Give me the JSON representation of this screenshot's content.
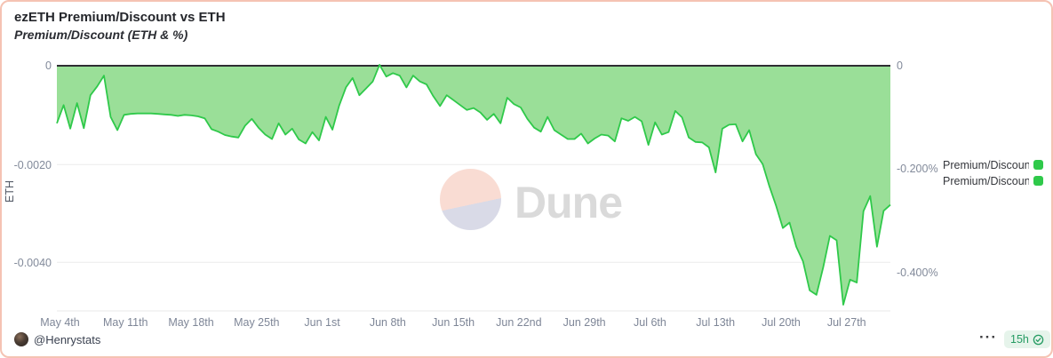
{
  "header": {
    "title": "ezETH Premium/Discount vs ETH",
    "subtitle": "Premium/Discount (ETH & %)"
  },
  "watermark": {
    "brand": "Dune"
  },
  "axes": {
    "left": {
      "label": "ETH",
      "ticks": [
        "0",
        "-0.0020",
        "-0.0040"
      ]
    },
    "right": {
      "ticks": [
        "0",
        "-0.200%",
        "-0.400%"
      ]
    }
  },
  "legend": [
    {
      "label": "Premium/Discount",
      "color": "#2fc94a"
    },
    {
      "label": "Premium/Discount",
      "color": "#2fc94a"
    }
  ],
  "footer": {
    "author": "@Henrystats",
    "menu_icon": "···",
    "updated_badge": "15h"
  },
  "colors": {
    "border": "#f5c3b3",
    "area_fill": "#9adf98",
    "line_stroke": "#2fc94a",
    "zero_line": "#2e2e32",
    "grid": "#ececec",
    "axis_text": "#828a9a",
    "badge_bg": "#e6f4eb",
    "badge_text": "#259b62",
    "watermark_pink": "#f9dcd3",
    "watermark_lavender": "#d9dae7"
  },
  "chart_data": {
    "type": "area",
    "title": "ezETH Premium/Discount vs ETH",
    "subtitle": "Premium/Discount (ETH & %)",
    "x_tick_labels": [
      "May 4th",
      "May 11th",
      "May 18th",
      "May 25th",
      "Jun 1st",
      "Jun 8th",
      "Jun 15th",
      "Jun 22nd",
      "Jun 29th",
      "Jul 6th",
      "Jul 13th",
      "Jul 20th",
      "Jul 27th"
    ],
    "x_range_days": [
      "May 4",
      "Aug 1"
    ],
    "ylabel_left": "ETH",
    "ylim_left": [
      -0.005,
      0.0002
    ],
    "ylim_right_percent": [
      -0.45,
      0.02
    ],
    "grid": "horizontal",
    "legend_position": "right",
    "right_axis_relation": "percent value = ETH value x 100",
    "series": [
      {
        "name": "Premium/Discount",
        "unit": "ETH",
        "values": [
          -0.00117,
          -0.0008,
          -0.00128,
          -0.00076,
          -0.00127,
          -0.0006,
          -0.00042,
          -0.0002,
          -0.00104,
          -0.00131,
          -0.001,
          -0.00098,
          -0.00097,
          -0.00097,
          -0.00097,
          -0.00098,
          -0.00099,
          -0.001,
          -0.00102,
          -0.001,
          -0.00101,
          -0.00103,
          -0.00107,
          -0.00129,
          -0.00134,
          -0.00141,
          -0.00144,
          -0.00146,
          -0.00122,
          -0.00108,
          -0.00126,
          -0.0014,
          -0.00149,
          -0.00117,
          -0.0014,
          -0.00128,
          -0.0015,
          -0.00158,
          -0.00135,
          -0.00152,
          -0.00104,
          -0.0013,
          -0.00081,
          -0.00044,
          -0.00025,
          -0.0006,
          -0.00046,
          -0.00032,
          2e-05,
          -0.00022,
          -0.00015,
          -0.0002,
          -0.00044,
          -0.0002,
          -0.00032,
          -0.00038,
          -0.00062,
          -0.00082,
          -0.0006,
          -0.0007,
          -0.0008,
          -0.0009,
          -0.00086,
          -0.00095,
          -0.0011,
          -0.00098,
          -0.00117,
          -0.00065,
          -0.00078,
          -0.00085,
          -0.00108,
          -0.00126,
          -0.00134,
          -0.00104,
          -0.00131,
          -0.0014,
          -0.00149,
          -0.00149,
          -0.00138,
          -0.00158,
          -0.00148,
          -0.0014,
          -0.00142,
          -0.00154,
          -0.00107,
          -0.00112,
          -0.00104,
          -0.00113,
          -0.00161,
          -0.00115,
          -0.0014,
          -0.00135,
          -0.00092,
          -0.00105,
          -0.00146,
          -0.00155,
          -0.00156,
          -0.00166,
          -0.00217,
          -0.00128,
          -0.0012,
          -0.00119,
          -0.00154,
          -0.00131,
          -0.0018,
          -0.002,
          -0.00245,
          -0.00285,
          -0.0033,
          -0.00319,
          -0.00368,
          -0.00398,
          -0.00457,
          -0.00466,
          -0.0041,
          -0.00346,
          -0.00355,
          -0.00486,
          -0.00435,
          -0.00441,
          -0.00296,
          -0.00265,
          -0.00368,
          -0.00295,
          -0.00283
        ]
      }
    ]
  }
}
